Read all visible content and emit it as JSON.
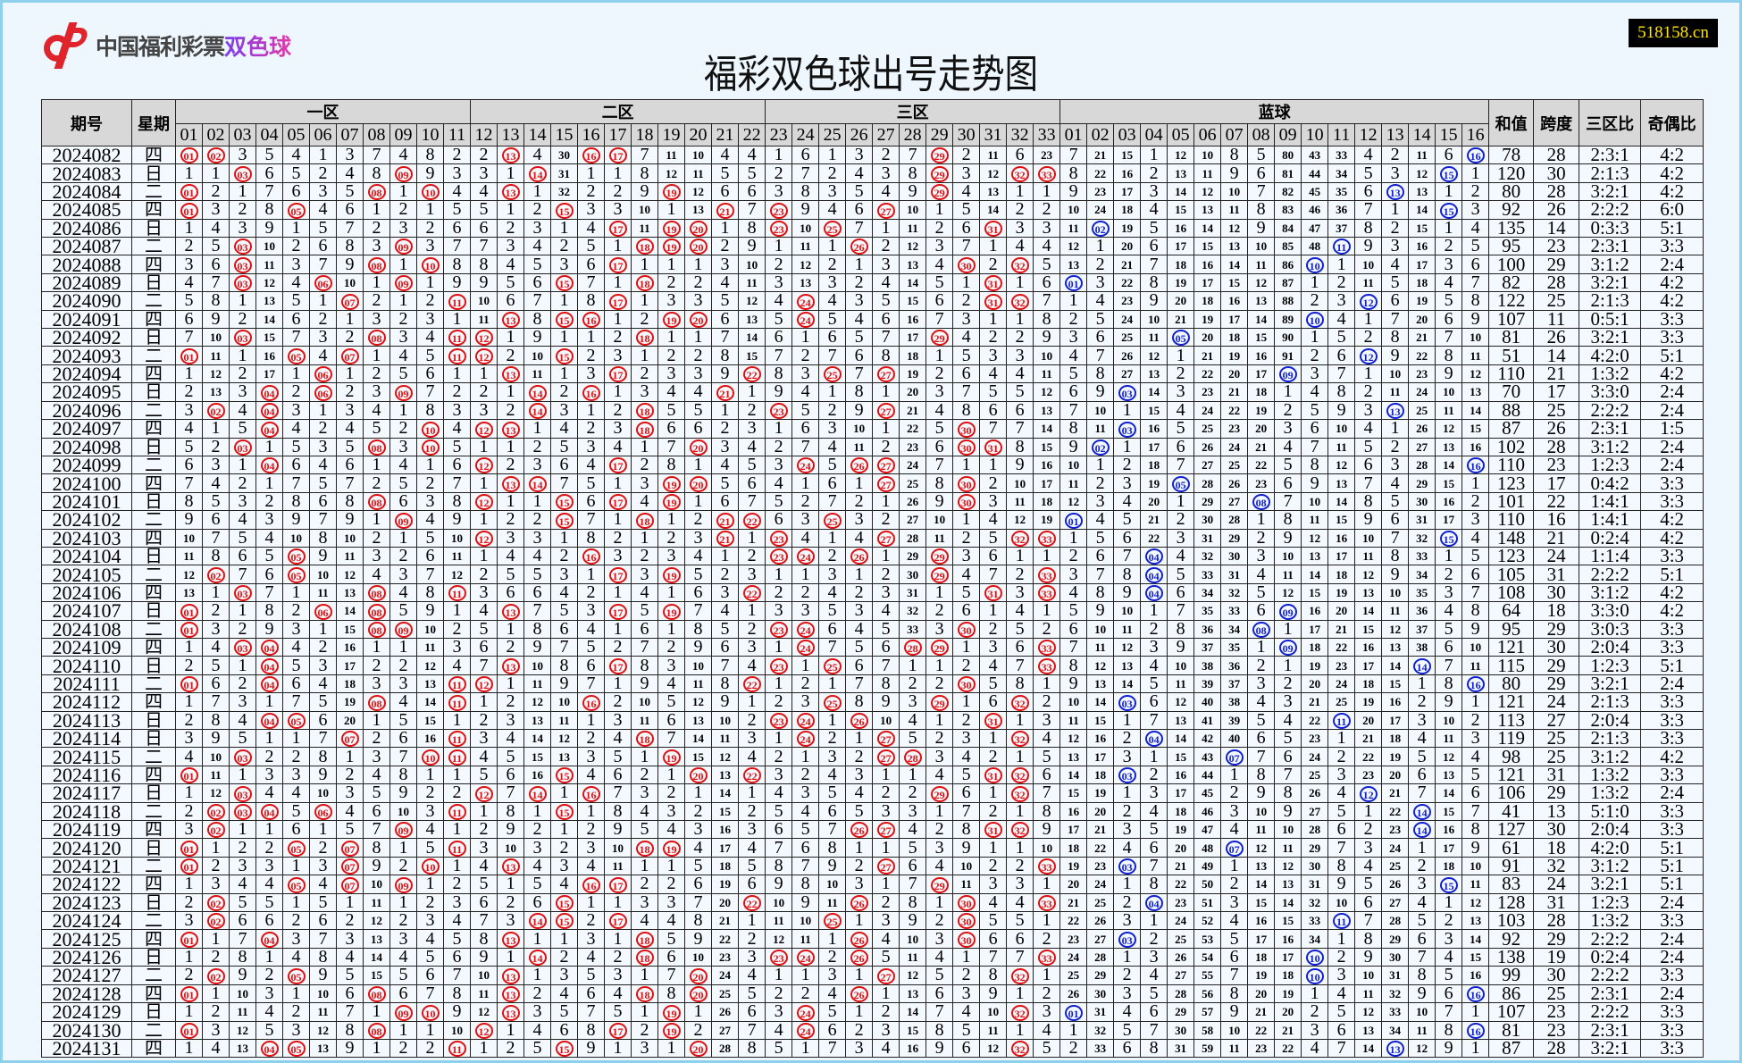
{
  "logo": {
    "text": "中国福利彩票",
    "product": "双色球",
    "brand_color": "#e0242b"
  },
  "title": "福彩双色球出号走势图",
  "badge": "518158.cn",
  "headers": {
    "issue": "期号",
    "weekday": "星期",
    "zone1": "一区",
    "zone2": "二区",
    "zone3": "三区",
    "blue": "蓝球",
    "sum": "和值",
    "span": "跨度",
    "zone_ratio": "三区比",
    "odd_even": "奇偶比"
  },
  "red_numbers": [
    "01",
    "02",
    "03",
    "04",
    "05",
    "06",
    "07",
    "08",
    "09",
    "10",
    "11",
    "12",
    "13",
    "14",
    "15",
    "16",
    "17",
    "18",
    "19",
    "20",
    "21",
    "22",
    "23",
    "24",
    "25",
    "26",
    "27",
    "28",
    "29",
    "30",
    "31",
    "32",
    "33"
  ],
  "blue_numbers": [
    "01",
    "02",
    "03",
    "04",
    "05",
    "06",
    "07",
    "08",
    "09",
    "10",
    "11",
    "12",
    "13",
    "14",
    "15",
    "16"
  ],
  "colors": {
    "red_ball": "#e01010",
    "blue_ball": "#1020d0",
    "header_bg": "#d8d8d8",
    "row_bg": "#f3f9ff"
  },
  "first_row_omission": {
    "red": [
      0,
      0,
      3,
      5,
      4,
      1,
      3,
      7,
      4,
      8,
      2,
      2,
      0,
      4,
      30,
      0,
      0,
      7,
      11,
      10,
      4,
      4,
      1,
      6,
      1,
      3,
      2,
      7,
      0,
      2,
      11,
      6,
      23
    ],
    "blue": [
      7,
      21,
      15,
      1,
      12,
      10,
      8,
      5,
      80,
      43,
      33,
      4,
      2,
      11,
      6,
      0
    ]
  },
  "rows": [
    {
      "issue": "2024082",
      "weekday": "四",
      "red": [
        1,
        2,
        13,
        16,
        17,
        29
      ],
      "blue": 16,
      "sum": 78,
      "span": 28,
      "zone": "2:3:1",
      "odd_even": "4:2"
    },
    {
      "issue": "2024083",
      "weekday": "日",
      "red": [
        3,
        9,
        14,
        29,
        32,
        33
      ],
      "blue": 15,
      "sum": 120,
      "span": 30,
      "zone": "2:1:3",
      "odd_even": "4:2"
    },
    {
      "issue": "2024084",
      "weekday": "二",
      "red": [
        1,
        8,
        10,
        13,
        19,
        29
      ],
      "blue": 13,
      "sum": 80,
      "span": 28,
      "zone": "3:2:1",
      "odd_even": "4:2"
    },
    {
      "issue": "2024085",
      "weekday": "四",
      "red": [
        1,
        5,
        15,
        21,
        23,
        27
      ],
      "blue": 15,
      "sum": 92,
      "span": 26,
      "zone": "2:2:2",
      "odd_even": "6:0"
    },
    {
      "issue": "2024086",
      "weekday": "日",
      "red": [
        17,
        19,
        20,
        23,
        25,
        31
      ],
      "blue": 2,
      "sum": 135,
      "span": 14,
      "zone": "0:3:3",
      "odd_even": "5:1"
    },
    {
      "issue": "2024087",
      "weekday": "二",
      "red": [
        3,
        9,
        18,
        19,
        20,
        26
      ],
      "blue": 11,
      "sum": 95,
      "span": 23,
      "zone": "2:3:1",
      "odd_even": "3:3"
    },
    {
      "issue": "2024088",
      "weekday": "四",
      "red": [
        3,
        8,
        10,
        17,
        30,
        32
      ],
      "blue": 10,
      "sum": 100,
      "span": 29,
      "zone": "3:1:2",
      "odd_even": "2:4"
    },
    {
      "issue": "2024089",
      "weekday": "日",
      "red": [
        3,
        6,
        9,
        15,
        18,
        31
      ],
      "blue": 1,
      "sum": 82,
      "span": 28,
      "zone": "3:2:1",
      "odd_even": "4:2"
    },
    {
      "issue": "2024090",
      "weekday": "二",
      "red": [
        7,
        11,
        17,
        24,
        31,
        32
      ],
      "blue": 12,
      "sum": 122,
      "span": 25,
      "zone": "2:1:3",
      "odd_even": "4:2"
    },
    {
      "issue": "2024091",
      "weekday": "四",
      "red": [
        13,
        15,
        16,
        19,
        20,
        24
      ],
      "blue": 10,
      "sum": 107,
      "span": 11,
      "zone": "0:5:1",
      "odd_even": "3:3"
    },
    {
      "issue": "2024092",
      "weekday": "日",
      "red": [
        3,
        8,
        11,
        12,
        18,
        29
      ],
      "blue": 5,
      "sum": 81,
      "span": 26,
      "zone": "3:2:1",
      "odd_even": "3:3"
    },
    {
      "issue": "2024093",
      "weekday": "二",
      "red": [
        1,
        5,
        7,
        11,
        12,
        15
      ],
      "blue": 12,
      "sum": 51,
      "span": 14,
      "zone": "4:2:0",
      "odd_even": "5:1"
    },
    {
      "issue": "2024094",
      "weekday": "四",
      "red": [
        6,
        13,
        17,
        22,
        25,
        27
      ],
      "blue": 9,
      "sum": 110,
      "span": 21,
      "zone": "1:3:2",
      "odd_even": "4:2"
    },
    {
      "issue": "2024095",
      "weekday": "日",
      "red": [
        4,
        6,
        9,
        14,
        16,
        21
      ],
      "blue": 3,
      "sum": 70,
      "span": 17,
      "zone": "3:3:0",
      "odd_even": "2:4"
    },
    {
      "issue": "2024096",
      "weekday": "二",
      "red": [
        2,
        4,
        14,
        18,
        23,
        27
      ],
      "blue": 13,
      "sum": 88,
      "span": 25,
      "zone": "2:2:2",
      "odd_even": "2:4"
    },
    {
      "issue": "2024097",
      "weekday": "四",
      "red": [
        4,
        10,
        12,
        13,
        18,
        30
      ],
      "blue": 3,
      "sum": 87,
      "span": 26,
      "zone": "2:3:1",
      "odd_even": "1:5"
    },
    {
      "issue": "2024098",
      "weekday": "日",
      "red": [
        3,
        8,
        10,
        20,
        30,
        31
      ],
      "blue": 2,
      "sum": 102,
      "span": 28,
      "zone": "3:1:2",
      "odd_even": "2:4"
    },
    {
      "issue": "2024099",
      "weekday": "二",
      "red": [
        4,
        12,
        17,
        24,
        26,
        27
      ],
      "blue": 16,
      "sum": 110,
      "span": 23,
      "zone": "1:2:3",
      "odd_even": "2:4"
    },
    {
      "issue": "2024100",
      "weekday": "四",
      "red": [
        13,
        14,
        19,
        20,
        27,
        30
      ],
      "blue": 5,
      "sum": 123,
      "span": 17,
      "zone": "0:4:2",
      "odd_even": "3:3"
    },
    {
      "issue": "2024101",
      "weekday": "日",
      "red": [
        8,
        12,
        15,
        17,
        19,
        30
      ],
      "blue": 8,
      "sum": 101,
      "span": 22,
      "zone": "1:4:1",
      "odd_even": "3:3"
    },
    {
      "issue": "2024102",
      "weekday": "二",
      "red": [
        9,
        15,
        18,
        21,
        22,
        25
      ],
      "blue": 1,
      "sum": 110,
      "span": 16,
      "zone": "1:4:1",
      "odd_even": "4:2"
    },
    {
      "issue": "2024103",
      "weekday": "四",
      "red": [
        12,
        21,
        23,
        27,
        32,
        33
      ],
      "blue": 15,
      "sum": 148,
      "span": 21,
      "zone": "0:2:4",
      "odd_even": "4:2"
    },
    {
      "issue": "2024104",
      "weekday": "日",
      "red": [
        5,
        16,
        23,
        24,
        26,
        29
      ],
      "blue": 4,
      "sum": 123,
      "span": 24,
      "zone": "1:1:4",
      "odd_even": "3:3"
    },
    {
      "issue": "2024105",
      "weekday": "二",
      "red": [
        2,
        5,
        17,
        19,
        29,
        33
      ],
      "blue": 4,
      "sum": 105,
      "span": 31,
      "zone": "2:2:2",
      "odd_even": "5:1"
    },
    {
      "issue": "2024106",
      "weekday": "四",
      "red": [
        3,
        8,
        11,
        22,
        31,
        33
      ],
      "blue": 4,
      "sum": 108,
      "span": 30,
      "zone": "3:1:2",
      "odd_even": "4:2"
    },
    {
      "issue": "2024107",
      "weekday": "日",
      "red": [
        1,
        6,
        8,
        13,
        17,
        19
      ],
      "blue": 9,
      "sum": 64,
      "span": 18,
      "zone": "3:3:0",
      "odd_even": "4:2"
    },
    {
      "issue": "2024108",
      "weekday": "二",
      "red": [
        1,
        8,
        9,
        23,
        24,
        30
      ],
      "blue": 8,
      "sum": 95,
      "span": 29,
      "zone": "3:0:3",
      "odd_even": "3:3"
    },
    {
      "issue": "2024109",
      "weekday": "四",
      "red": [
        3,
        4,
        24,
        28,
        29,
        33
      ],
      "blue": 9,
      "sum": 121,
      "span": 30,
      "zone": "2:0:4",
      "odd_even": "3:3"
    },
    {
      "issue": "2024110",
      "weekday": "日",
      "red": [
        4,
        13,
        17,
        23,
        25,
        33
      ],
      "blue": 14,
      "sum": 115,
      "span": 29,
      "zone": "1:2:3",
      "odd_even": "5:1"
    },
    {
      "issue": "2024111",
      "weekday": "二",
      "red": [
        1,
        4,
        11,
        12,
        22,
        30
      ],
      "blue": 16,
      "sum": 80,
      "span": 29,
      "zone": "3:2:1",
      "odd_even": "2:4"
    },
    {
      "issue": "2024112",
      "weekday": "四",
      "red": [
        8,
        11,
        16,
        25,
        29,
        32
      ],
      "blue": 3,
      "sum": 121,
      "span": 24,
      "zone": "2:1:3",
      "odd_even": "3:3"
    },
    {
      "issue": "2024113",
      "weekday": "日",
      "red": [
        4,
        5,
        23,
        24,
        26,
        31
      ],
      "blue": 11,
      "sum": 113,
      "span": 27,
      "zone": "2:0:4",
      "odd_even": "3:3"
    },
    {
      "issue": "2024114",
      "weekday": "日",
      "red": [
        7,
        11,
        18,
        24,
        27,
        32
      ],
      "blue": 4,
      "sum": 119,
      "span": 25,
      "zone": "2:1:3",
      "odd_even": "3:3"
    },
    {
      "issue": "2024115",
      "weekday": "二",
      "red": [
        3,
        10,
        11,
        19,
        27,
        28
      ],
      "blue": 7,
      "sum": 98,
      "span": 25,
      "zone": "3:1:2",
      "odd_even": "4:2"
    },
    {
      "issue": "2024116",
      "weekday": "四",
      "red": [
        1,
        15,
        20,
        22,
        31,
        32
      ],
      "blue": 3,
      "sum": 121,
      "span": 31,
      "zone": "1:3:2",
      "odd_even": "3:3"
    },
    {
      "issue": "2024117",
      "weekday": "日",
      "red": [
        3,
        12,
        14,
        16,
        29,
        32
      ],
      "blue": 12,
      "sum": 106,
      "span": 29,
      "zone": "1:3:2",
      "odd_even": "2:4"
    },
    {
      "issue": "2024118",
      "weekday": "二",
      "red": [
        2,
        3,
        4,
        6,
        11,
        15
      ],
      "blue": 14,
      "sum": 41,
      "span": 13,
      "zone": "5:1:0",
      "odd_even": "3:3"
    },
    {
      "issue": "2024119",
      "weekday": "四",
      "red": [
        2,
        9,
        26,
        27,
        31,
        32
      ],
      "blue": 14,
      "sum": 127,
      "span": 30,
      "zone": "2:0:4",
      "odd_even": "3:3"
    },
    {
      "issue": "2024120",
      "weekday": "日",
      "red": [
        1,
        5,
        7,
        11,
        18,
        19
      ],
      "blue": 7,
      "sum": 61,
      "span": 18,
      "zone": "4:2:0",
      "odd_even": "5:1"
    },
    {
      "issue": "2024121",
      "weekday": "二",
      "red": [
        1,
        7,
        10,
        13,
        27,
        33
      ],
      "blue": 3,
      "sum": 91,
      "span": 32,
      "zone": "3:1:2",
      "odd_even": "5:1"
    },
    {
      "issue": "2024122",
      "weekday": "四",
      "red": [
        5,
        7,
        9,
        16,
        17,
        29
      ],
      "blue": 15,
      "sum": 83,
      "span": 24,
      "zone": "3:2:1",
      "odd_even": "5:1"
    },
    {
      "issue": "2024123",
      "weekday": "日",
      "red": [
        2,
        15,
        22,
        26,
        30,
        33
      ],
      "blue": 4,
      "sum": 128,
      "span": 31,
      "zone": "1:2:3",
      "odd_even": "2:4"
    },
    {
      "issue": "2024124",
      "weekday": "二",
      "red": [
        2,
        14,
        15,
        17,
        25,
        30
      ],
      "blue": 11,
      "sum": 103,
      "span": 28,
      "zone": "1:3:2",
      "odd_even": "3:3"
    },
    {
      "issue": "2024125",
      "weekday": "四",
      "red": [
        1,
        4,
        13,
        18,
        26,
        30
      ],
      "blue": 3,
      "sum": 92,
      "span": 29,
      "zone": "2:2:2",
      "odd_even": "2:4"
    },
    {
      "issue": "2024126",
      "weekday": "日",
      "red": [
        14,
        18,
        23,
        24,
        26,
        33
      ],
      "blue": 10,
      "sum": 138,
      "span": 19,
      "zone": "0:2:4",
      "odd_even": "2:4"
    },
    {
      "issue": "2024127",
      "weekday": "二",
      "red": [
        2,
        5,
        13,
        20,
        27,
        32
      ],
      "blue": 10,
      "sum": 99,
      "span": 30,
      "zone": "2:2:2",
      "odd_even": "3:3"
    },
    {
      "issue": "2024128",
      "weekday": "四",
      "red": [
        1,
        8,
        13,
        18,
        20,
        26
      ],
      "blue": 16,
      "sum": 86,
      "span": 25,
      "zone": "2:3:1",
      "odd_even": "2:4"
    },
    {
      "issue": "2024129",
      "weekday": "日",
      "red": [
        9,
        10,
        13,
        19,
        24,
        32
      ],
      "blue": 1,
      "sum": 107,
      "span": 23,
      "zone": "2:2:2",
      "odd_even": "3:3"
    },
    {
      "issue": "2024130",
      "weekday": "二",
      "red": [
        1,
        8,
        12,
        17,
        19,
        24
      ],
      "blue": 16,
      "sum": 81,
      "span": 23,
      "zone": "2:3:1",
      "odd_even": "3:3"
    },
    {
      "issue": "2024131",
      "weekday": "四",
      "red": [
        4,
        5,
        11,
        15,
        20,
        32
      ],
      "blue": 13,
      "sum": 87,
      "span": 28,
      "zone": "3:2:1",
      "odd_even": "3:3"
    }
  ]
}
